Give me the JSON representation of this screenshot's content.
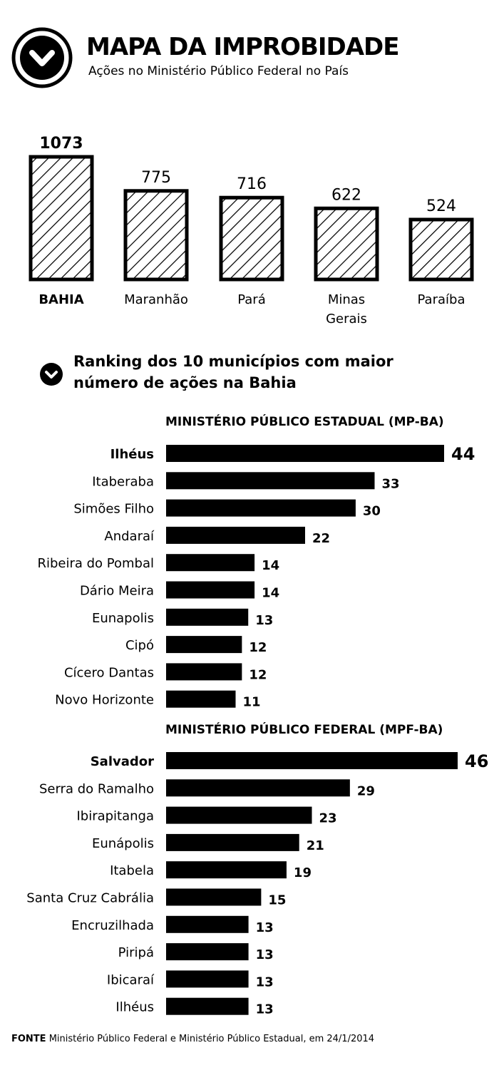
{
  "header": {
    "title": "MAPA DA IMPROBIDADE",
    "subtitle": "Ações no Ministério Público Federal no País",
    "icon": "chevron-down-circle-icon"
  },
  "ranking": {
    "heading_line1": "Ranking dos 10 municípios com maior",
    "heading_line2": "número de ações na Bahia",
    "icon": "chevron-down-circle-icon"
  },
  "mpba": {
    "title": "MINISTÉRIO PÚBLICO ESTADUAL (MP-BA)"
  },
  "mpfba": {
    "title": "MINISTÉRIO PÚBLICO FEDERAL (MPF-BA)"
  },
  "source": {
    "label": "FONTE",
    "text": "Ministério Público Federal e Ministério Público Estadual, em 24/1/2014"
  },
  "chart_data": [
    {
      "type": "bar",
      "title": "Ações no Ministério Público Federal no País",
      "categories": [
        "BAHIA",
        "Maranhão",
        "Pará",
        "Minas Gerais",
        "Paraíba"
      ],
      "category_lines": [
        [
          "BAHIA"
        ],
        [
          "Maranhão"
        ],
        [
          "Pará"
        ],
        [
          "Minas",
          "Gerais"
        ],
        [
          "Paraíba"
        ]
      ],
      "values": [
        1073,
        775,
        716,
        622,
        524
      ],
      "highlight": "BAHIA",
      "pattern": "diagonal-hatch",
      "ylim": [
        0,
        1073
      ]
    },
    {
      "type": "bar",
      "orientation": "horizontal",
      "title": "MINISTÉRIO PÚBLICO ESTADUAL (MP-BA)",
      "categories": [
        "Ilhéus",
        "Itaberaba",
        "Simões Filho",
        "Andaraí",
        "Ribeira do Pombal",
        "Dário Meira",
        "Eunapolis",
        "Cipó",
        "Cícero Dantas",
        "Novo Horizonte"
      ],
      "values": [
        44,
        33,
        30,
        22,
        14,
        14,
        13,
        12,
        12,
        11
      ],
      "highlight": "Ilhéus",
      "xlim": [
        0,
        44
      ],
      "bar_color": "#000000"
    },
    {
      "type": "bar",
      "orientation": "horizontal",
      "title": "MINISTÉRIO PÚBLICO FEDERAL (MPF-BA)",
      "categories": [
        "Salvador",
        "Serra do Ramalho",
        "Ibirapitanga",
        "Eunápolis",
        "Itabela",
        "Santa Cruz Cabrália",
        "Encruzilhada",
        "Piripá",
        "Ibicaraí",
        "Ilhéus"
      ],
      "values": [
        46,
        29,
        23,
        21,
        19,
        15,
        13,
        13,
        13,
        13
      ],
      "highlight": "Salvador",
      "xlim": [
        0,
        46
      ],
      "bar_color": "#000000"
    }
  ]
}
